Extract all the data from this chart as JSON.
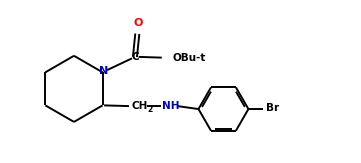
{
  "bg_color": "#ffffff",
  "line_color": "#000000",
  "label_color_N": "#0000cd",
  "label_color_O": "#ff0000",
  "label_color_text": "#000000",
  "figsize": [
    3.61,
    1.63
  ],
  "dpi": 100,
  "lw": 1.4,
  "font_size": 7.5,
  "font_family": "DejaVu Sans",
  "xlim": [
    0.0,
    9.5
  ],
  "ylim": [
    0.8,
    5.2
  ]
}
